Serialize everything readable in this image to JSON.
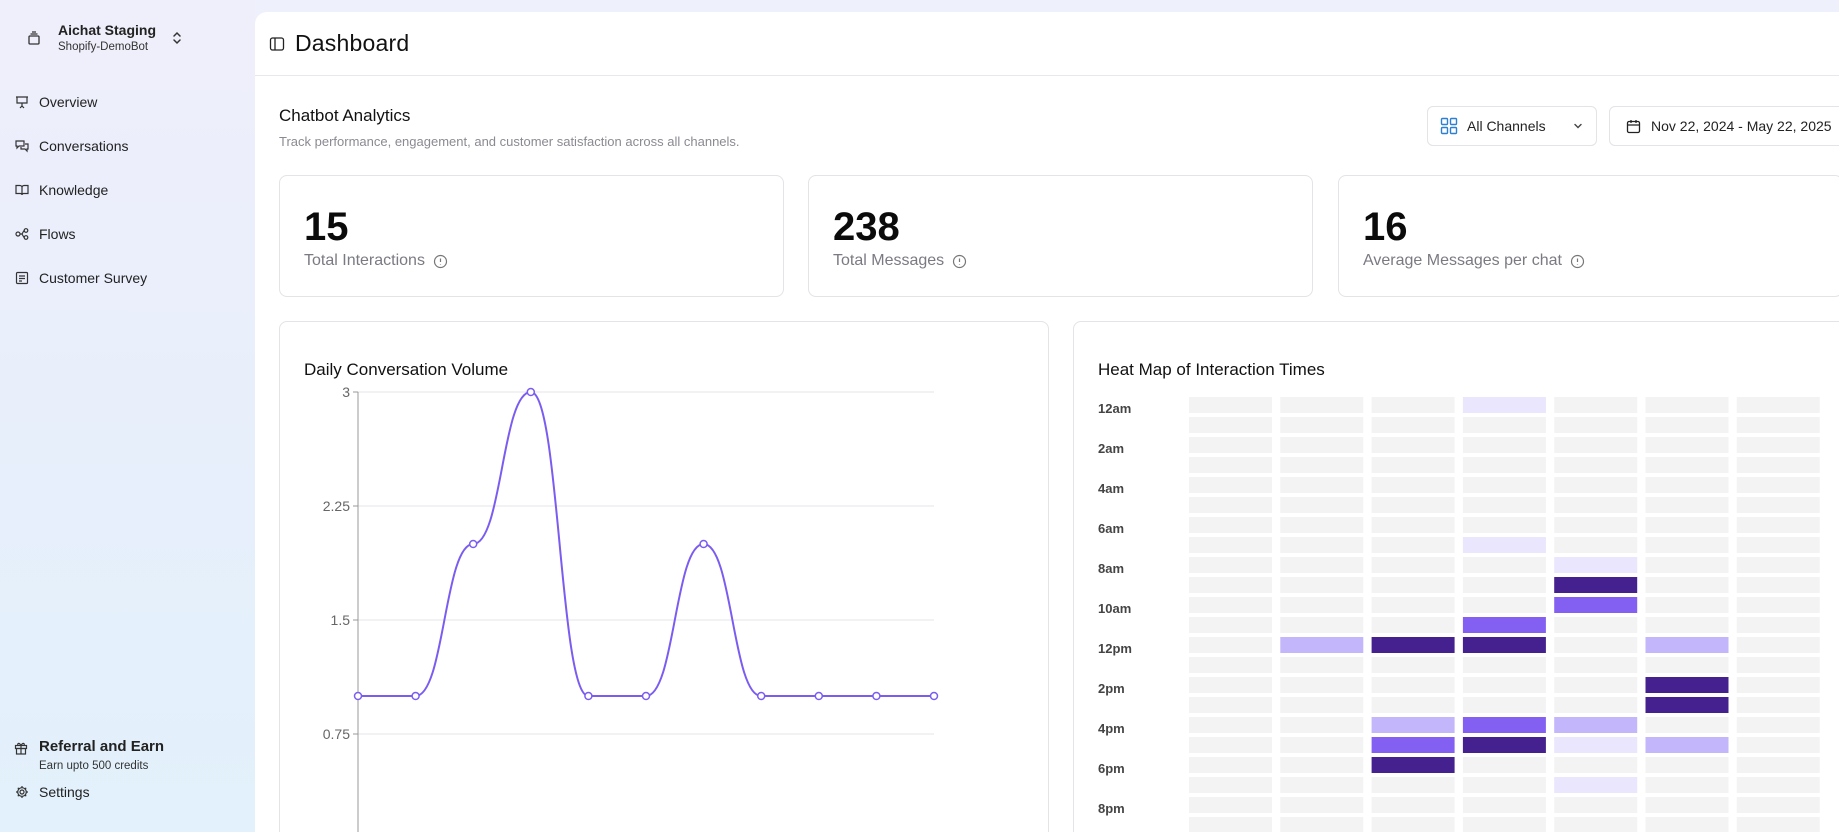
{
  "workspace": {
    "name": "Aichat Staging",
    "bot": "Shopify-DemoBot"
  },
  "sidebar": {
    "items": [
      {
        "label": "Overview",
        "icon": "presentation-icon"
      },
      {
        "label": "Conversations",
        "icon": "chat-bubbles-icon"
      },
      {
        "label": "Knowledge",
        "icon": "book-icon"
      },
      {
        "label": "Flows",
        "icon": "flow-icon"
      },
      {
        "label": "Customer Survey",
        "icon": "survey-icon"
      }
    ],
    "referral": {
      "title": "Referral and Earn",
      "subtitle": "Earn upto 500 credits"
    },
    "settings_label": "Settings"
  },
  "header": {
    "title": "Dashboard"
  },
  "analytics": {
    "title": "Chatbot Analytics",
    "subtitle": "Track performance, engagement, and customer satisfaction across all channels."
  },
  "filters": {
    "channel": "All Channels",
    "date_range": "Nov 22, 2024 - May 22, 2025"
  },
  "stats": [
    {
      "value": "15",
      "label": "Total Interactions"
    },
    {
      "value": "238",
      "label": "Total Messages"
    },
    {
      "value": "16",
      "label": "Average Messages per chat"
    }
  ],
  "colors": {
    "accent": "#7b5cf0",
    "heat_0": "#f3f3f4",
    "heat_1": "#e9e6fd",
    "heat_2": "#c3b6fb",
    "heat_3": "#8460f2",
    "heat_4": "#45208f"
  },
  "line_chart": {
    "title": "Daily Conversation Volume",
    "chart_data": {
      "type": "line",
      "x": [
        0,
        1,
        2,
        3,
        4,
        5,
        6,
        7,
        8,
        9,
        10
      ],
      "values": [
        1,
        1,
        2,
        3,
        1,
        1,
        2,
        1,
        1,
        1,
        1
      ],
      "yticks": [
        "3",
        "2.25",
        "1.5",
        "0.75"
      ],
      "ylim": [
        0,
        3
      ],
      "grid": true
    }
  },
  "heatmap": {
    "title": "Heat Map of Interaction Times",
    "chart_data": {
      "type": "heatmap",
      "row_labels": [
        "12am",
        "2am",
        "4am",
        "6am",
        "8am",
        "10am",
        "12pm",
        "2pm",
        "4pm",
        "6pm",
        "8pm"
      ],
      "columns": 7,
      "visible_rows": 22,
      "cells": [
        {
          "row": 0,
          "col": 3,
          "level": 1
        },
        {
          "row": 7,
          "col": 3,
          "level": 1
        },
        {
          "row": 8,
          "col": 4,
          "level": 1
        },
        {
          "row": 9,
          "col": 4,
          "level": 4
        },
        {
          "row": 10,
          "col": 4,
          "level": 3
        },
        {
          "row": 11,
          "col": 3,
          "level": 3
        },
        {
          "row": 12,
          "col": 1,
          "level": 2
        },
        {
          "row": 12,
          "col": 2,
          "level": 4
        },
        {
          "row": 12,
          "col": 3,
          "level": 4
        },
        {
          "row": 12,
          "col": 5,
          "level": 2
        },
        {
          "row": 14,
          "col": 5,
          "level": 4
        },
        {
          "row": 15,
          "col": 5,
          "level": 4
        },
        {
          "row": 16,
          "col": 2,
          "level": 2
        },
        {
          "row": 16,
          "col": 3,
          "level": 3
        },
        {
          "row": 16,
          "col": 4,
          "level": 2
        },
        {
          "row": 17,
          "col": 2,
          "level": 3
        },
        {
          "row": 17,
          "col": 3,
          "level": 4
        },
        {
          "row": 17,
          "col": 4,
          "level": 1
        },
        {
          "row": 17,
          "col": 5,
          "level": 2
        },
        {
          "row": 18,
          "col": 2,
          "level": 4
        },
        {
          "row": 19,
          "col": 4,
          "level": 1
        }
      ]
    }
  }
}
